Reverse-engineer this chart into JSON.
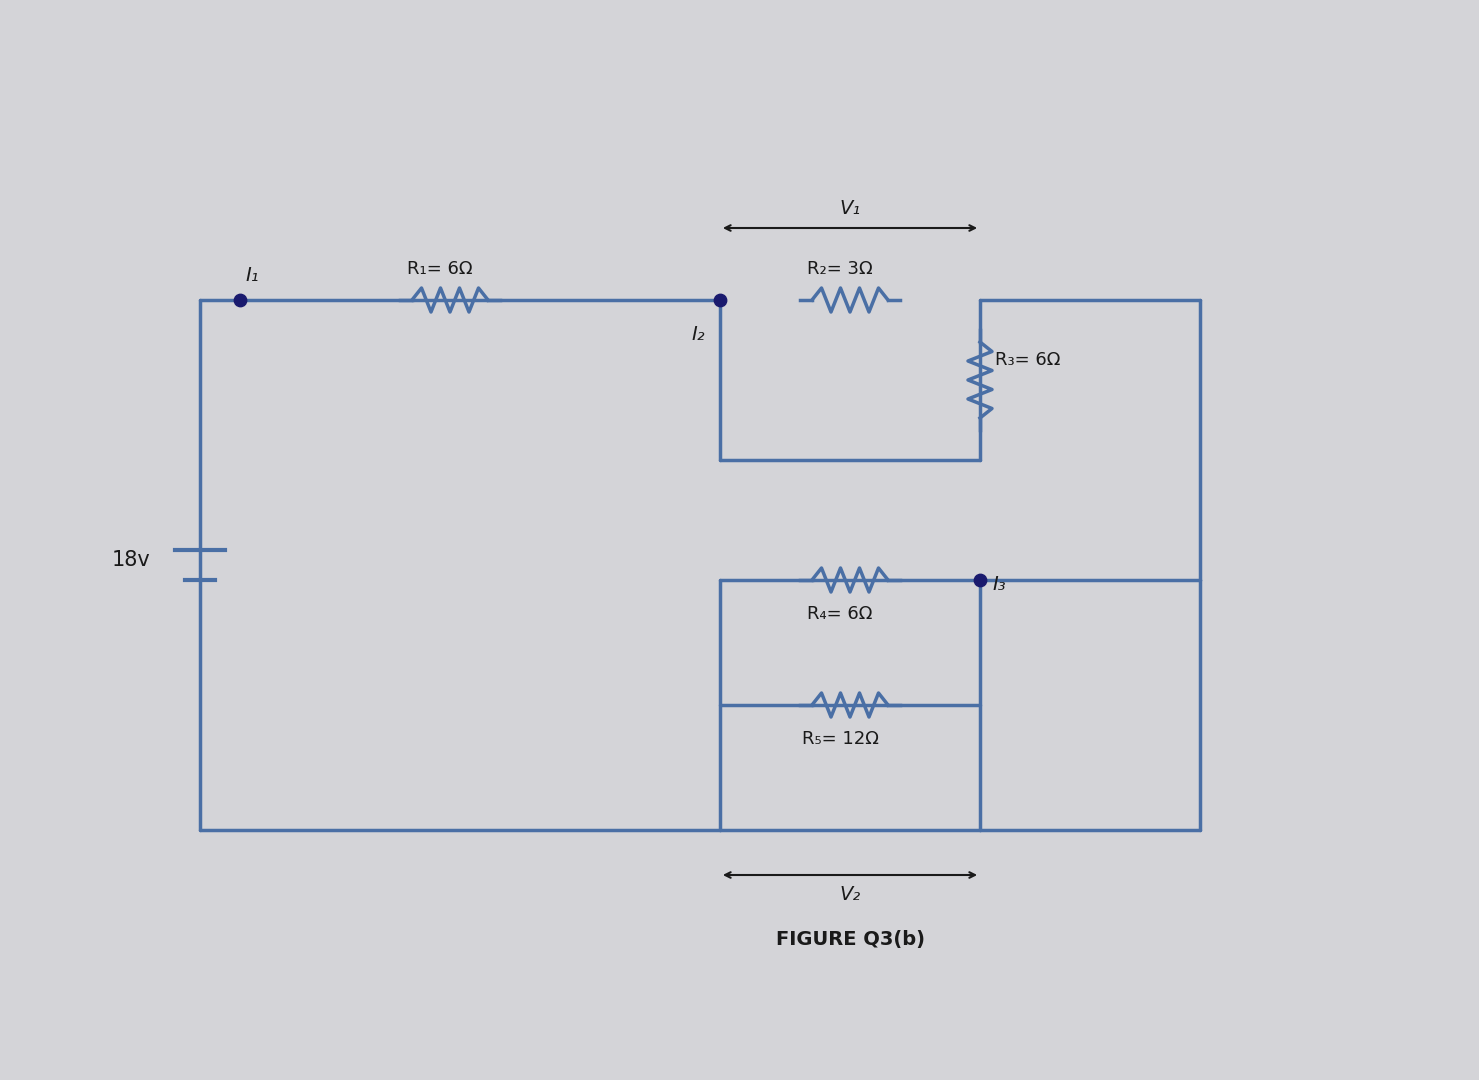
{
  "bg_color": "#d4d4d8",
  "line_color": "#4a6fa5",
  "line_width": 2.5,
  "dot_color": "#1a1a6e",
  "dot_size": 80,
  "text_color": "#1a1a1a",
  "font_size_label": 14,
  "font_size_resistor": 13,
  "font_size_title": 14,
  "title": "FIGURE Q3(b)",
  "voltage_source": "18v",
  "R1_label": "R₁= 6Ω",
  "R2_label": "R₂= 3Ω",
  "R3_label": "R₃= 6Ω",
  "R4_label": "R₄= 6Ω",
  "R5_label": "R₅= 12Ω",
  "I1_label": "I₁",
  "I2_label": "I₂",
  "I3_label": "I₃",
  "V1_label": "V₁",
  "V2_label": "V₂"
}
